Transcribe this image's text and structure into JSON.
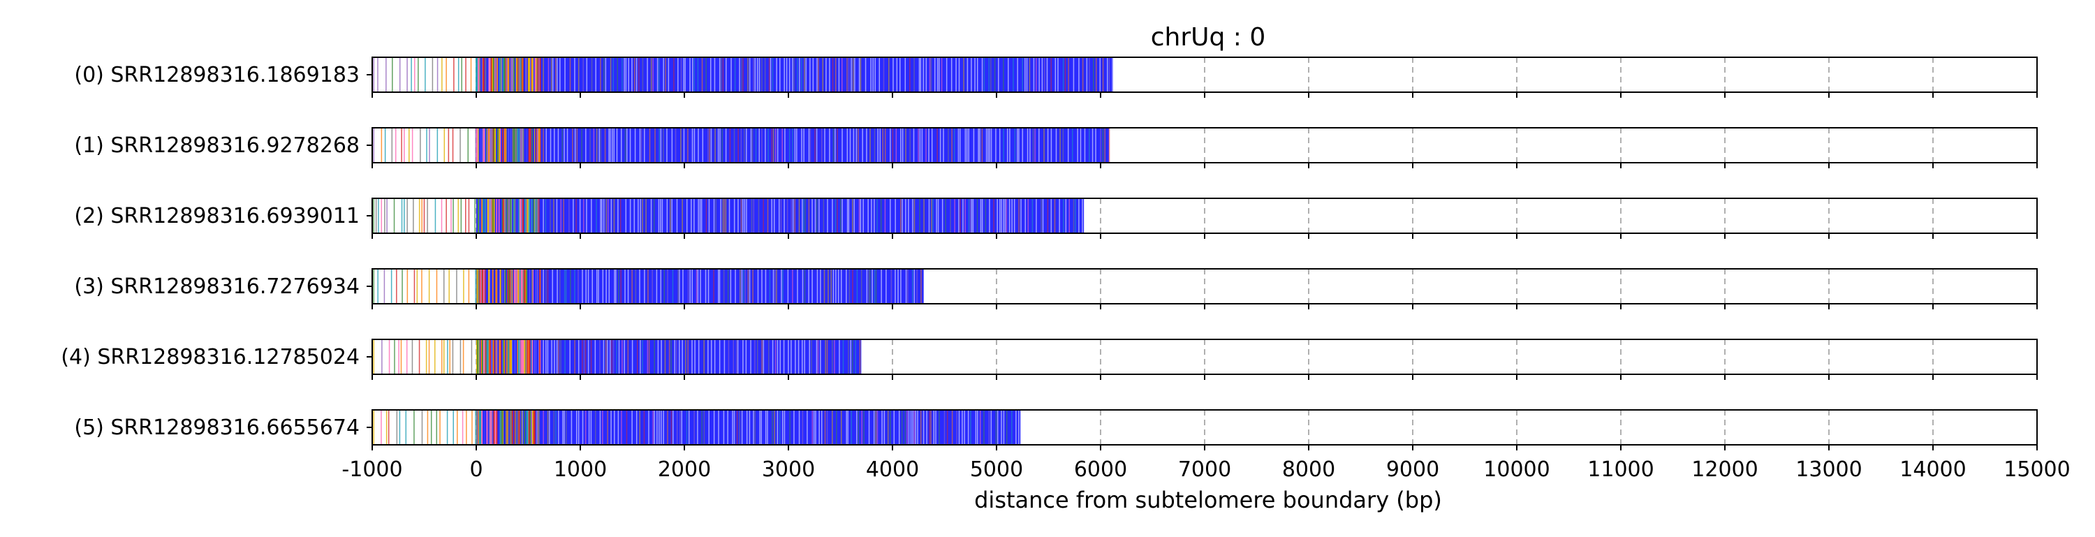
{
  "chart_data": {
    "type": "bar",
    "title": "chrUq : 0",
    "xlabel": "distance from subtelomere boundary (bp)",
    "ylabel": "",
    "xlim": [
      -1000,
      15000
    ],
    "xticks": [
      -1000,
      0,
      1000,
      2000,
      3000,
      4000,
      5000,
      6000,
      7000,
      8000,
      9000,
      10000,
      11000,
      12000,
      13000,
      14000,
      15000
    ],
    "x_tick_labels": [
      "-1000",
      "0",
      "1000",
      "2000",
      "3000",
      "4000",
      "5000",
      "6000",
      "7000",
      "8000",
      "9000",
      "10000",
      "11000",
      "12000",
      "13000",
      "14000",
      "15000"
    ],
    "grid": "vertical dashed",
    "series_colors": {
      "dominant": "#2a2aff",
      "accents": [
        "#7a7a7a",
        "#3c8c3c",
        "#e0b000",
        "#d62728",
        "#ff69b4",
        "#9467bd",
        "#1f9fb4",
        "#ff7f0e"
      ]
    },
    "reads": [
      {
        "label": "(0) SRR12898316.1869183",
        "end": 6120
      },
      {
        "label": "(1) SRR12898316.9278268",
        "end": 6080
      },
      {
        "label": "(2) SRR12898316.6939011",
        "end": 5840
      },
      {
        "label": "(3) SRR12898316.7276934",
        "end": 4300
      },
      {
        "label": "(4) SRR12898316.12785024",
        "end": 3700
      },
      {
        "label": "(5) SRR12898316.6655674",
        "end": 5230
      }
    ]
  }
}
